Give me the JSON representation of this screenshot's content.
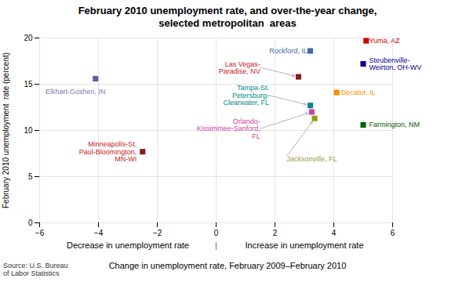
{
  "chart_data": {
    "type": "scatter",
    "title": "February 2010 unemployment rate, and over-the-year change,\nselected metropolitan  areas",
    "xlabel": "Change in unemployment rate, February 2009–February 2010",
    "xlabel_left": "Decrease in unemployment rate",
    "xlabel_right": "Increase in unemployment rate",
    "separator": "|",
    "separator_color": "#9933AA",
    "ylabel": "February 2010 unemployment  rate (percent)",
    "source": "Source: U.S. Bureau\nof Labor Statistics",
    "x": [
      -4.1,
      -2.5,
      3.2,
      2.8,
      3.2,
      3.25,
      3.35,
      5.1,
      5.0,
      4.1,
      5.0
    ],
    "values": [
      15.6,
      7.7,
      18.6,
      15.8,
      12.7,
      12.0,
      11.3,
      19.7,
      17.2,
      14.1,
      10.6
    ],
    "colors": [
      "#6060A0",
      "#8B1A1A",
      "#4169B0",
      "#8B1A1A",
      "#008B8B",
      "#CC44AA",
      "#9B9B00",
      "#CC0000",
      "#00008B",
      "#FF8C00",
      "#006400"
    ],
    "marker": "square",
    "annotations": [
      {
        "text": "Elkhart-Goshen, IN",
        "x": -5.8,
        "y": 14.5,
        "color": "#8878B8",
        "arrow": false
      },
      {
        "text": "Minneapolis-St.\nPaul-Bloomington,\nMN-WI",
        "x": -2.7,
        "y": 7.7,
        "color": "#CC2222",
        "arrow": false
      },
      {
        "text": "Rockford, IL",
        "x": 3.1,
        "y": 18.6,
        "color": "#4169B0",
        "arrow": false
      },
      {
        "text": "Las Vegas-\nParadise, NV",
        "x": 1.5,
        "y": 16.8,
        "color": "#CC2222",
        "arrow": true
      },
      {
        "text": "Tampa-St.\nPetersburg-\nClearwater, FL",
        "x": 1.8,
        "y": 13.8,
        "color": "#008B8B",
        "arrow": true
      },
      {
        "text": "Orlando-\nKissimmee-Sanford,\nFL",
        "x": 1.5,
        "y": 10.2,
        "color": "#CC44AA",
        "arrow": true
      },
      {
        "text": "Jacksonville, FL",
        "x": 2.4,
        "y": 7.2,
        "color": "#9B9B44",
        "arrow": true
      },
      {
        "text": "Yuma, AZ",
        "x": 5.2,
        "y": 19.7,
        "color": "#CC0000",
        "arrow": false
      },
      {
        "text": "Steubenville-\nWeirton, OH-WV",
        "x": 5.2,
        "y": 17.2,
        "color": "#00008B",
        "arrow": false
      },
      {
        "text": "Decatur, IL",
        "x": 4.25,
        "y": 14.1,
        "color": "#FF8C00",
        "arrow": false
      },
      {
        "text": "Farmington, NM",
        "x": 5.2,
        "y": 10.6,
        "color": "#006400",
        "arrow": false
      }
    ],
    "xlim": [
      -6,
      6
    ],
    "ylim": [
      0,
      20
    ],
    "xticks": [
      -6,
      -4,
      -2,
      0,
      2,
      4,
      6
    ],
    "yticks": [
      0,
      5,
      10,
      15,
      20
    ],
    "grid": true
  }
}
